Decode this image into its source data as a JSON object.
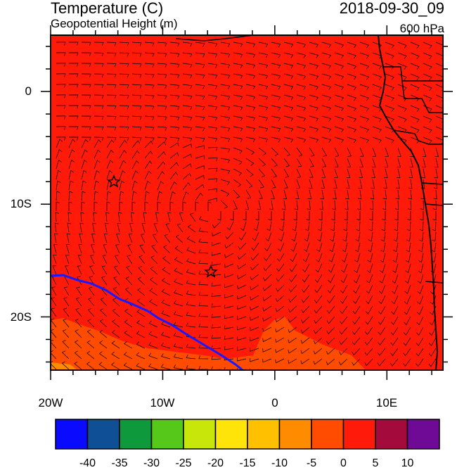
{
  "header": {
    "title": "Temperature (C)",
    "subtitle": "Geopotential Height (m)",
    "date": "2018-09-30_09",
    "level": "600 hPa"
  },
  "axes": {
    "lon_ticks": [
      "20W",
      "10W",
      "0",
      "10E"
    ],
    "lat_ticks": [
      "0",
      "10S",
      "20S"
    ],
    "lon_range": [
      -20,
      15
    ],
    "lat_range": [
      -25,
      5
    ]
  },
  "colorbar": {
    "labels": [
      "-40",
      "-35",
      "-30",
      "-25",
      "-20",
      "-15",
      "-10",
      "-5",
      "0",
      "5",
      "10"
    ],
    "colors": [
      "#0a0aff",
      "#0f4f96",
      "#0e9a3c",
      "#56c81a",
      "#c8e60a",
      "#ffe40a",
      "#ffc000",
      "#ff8c00",
      "#ff4c00",
      "#ff1a0a",
      "#a50a3c",
      "#6e0a96"
    ]
  },
  "map": {
    "dominant_fill": "#ff1a0a",
    "warm_region_fill": "#ff4c00",
    "contour_color": "#1a1aff",
    "markers": [
      "star",
      "star"
    ]
  }
}
